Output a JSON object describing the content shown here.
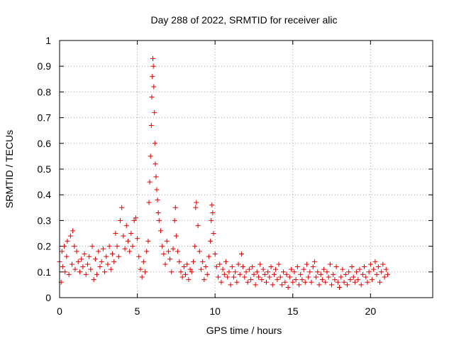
{
  "colors": {
    "series": "#e00000",
    "axis": "#000000",
    "grid": "#a0a0a0",
    "background": "#ffffff"
  },
  "chart_data": {
    "type": "scatter",
    "title": "Day 288 of 2022, SRMTID for receiver alic",
    "xlabel": "GPS time / hours",
    "ylabel": "SRMTID / TECUs",
    "xlim": [
      0,
      24
    ],
    "ylim": [
      0,
      1
    ],
    "xticks": [
      0,
      5,
      10,
      15,
      20
    ],
    "xtick_labels": [
      "0",
      "5",
      "10",
      "15",
      "20"
    ],
    "yticks": [
      0,
      0.1,
      0.2,
      0.3,
      0.4,
      0.5,
      0.6,
      0.7,
      0.8,
      0.9,
      1
    ],
    "ytick_labels": [
      "0",
      "0.1",
      "0.2",
      "0.3",
      "0.4",
      "0.5",
      "0.6",
      "0.7",
      "0.8",
      "0.9",
      "1"
    ],
    "grid": true,
    "marker": "plus",
    "series": [
      {
        "name": "SRMTID",
        "points": [
          [
            0.0,
            0.14
          ],
          [
            0.1,
            0.06
          ],
          [
            0.15,
            0.18
          ],
          [
            0.2,
            0.12
          ],
          [
            0.3,
            0.2
          ],
          [
            0.35,
            0.1
          ],
          [
            0.45,
            0.16
          ],
          [
            0.5,
            0.22
          ],
          [
            0.6,
            0.09
          ],
          [
            0.7,
            0.24
          ],
          [
            0.8,
            0.13
          ],
          [
            0.85,
            0.26
          ],
          [
            0.95,
            0.2
          ],
          [
            1.0,
            0.11
          ],
          [
            1.1,
            0.18
          ],
          [
            1.2,
            0.14
          ],
          [
            1.3,
            0.1
          ],
          [
            1.4,
            0.15
          ],
          [
            1.5,
            0.12
          ],
          [
            1.6,
            0.17
          ],
          [
            1.7,
            0.09
          ],
          [
            1.8,
            0.13
          ],
          [
            1.9,
            0.16
          ],
          [
            2.0,
            0.11
          ],
          [
            2.1,
            0.2
          ],
          [
            2.2,
            0.07
          ],
          [
            2.3,
            0.15
          ],
          [
            2.4,
            0.09
          ],
          [
            2.5,
            0.18
          ],
          [
            2.6,
            0.12
          ],
          [
            2.7,
            0.14
          ],
          [
            2.8,
            0.19
          ],
          [
            2.9,
            0.1
          ],
          [
            3.0,
            0.16
          ],
          [
            3.1,
            0.13
          ],
          [
            3.2,
            0.2
          ],
          [
            3.3,
            0.11
          ],
          [
            3.4,
            0.17
          ],
          [
            3.5,
            0.14
          ],
          [
            3.6,
            0.25
          ],
          [
            3.7,
            0.2
          ],
          [
            3.8,
            0.16
          ],
          [
            3.9,
            0.3
          ],
          [
            4.0,
            0.35
          ],
          [
            4.1,
            0.24
          ],
          [
            4.2,
            0.19
          ],
          [
            4.3,
            0.28
          ],
          [
            4.4,
            0.22
          ],
          [
            4.5,
            0.18
          ],
          [
            4.6,
            0.25
          ],
          [
            4.7,
            0.2
          ],
          [
            4.8,
            0.3
          ],
          [
            4.9,
            0.31
          ],
          [
            5.0,
            0.23
          ],
          [
            5.1,
            0.16
          ],
          [
            5.2,
            0.11
          ],
          [
            5.3,
            0.08
          ],
          [
            5.4,
            0.14
          ],
          [
            5.5,
            0.1
          ],
          [
            5.6,
            0.18
          ],
          [
            5.7,
            0.22
          ],
          [
            5.75,
            0.37
          ],
          [
            5.8,
            0.45
          ],
          [
            5.85,
            0.55
          ],
          [
            5.9,
            0.67
          ],
          [
            5.93,
            0.78
          ],
          [
            5.96,
            0.86
          ],
          [
            6.0,
            0.93
          ],
          [
            6.03,
            0.9
          ],
          [
            6.06,
            0.82
          ],
          [
            6.1,
            0.72
          ],
          [
            6.13,
            0.6
          ],
          [
            6.16,
            0.52
          ],
          [
            6.2,
            0.47
          ],
          [
            6.25,
            0.42
          ],
          [
            6.3,
            0.38
          ],
          [
            6.35,
            0.33
          ],
          [
            6.4,
            0.3
          ],
          [
            6.5,
            0.26
          ],
          [
            6.6,
            0.2
          ],
          [
            6.7,
            0.17
          ],
          [
            6.8,
            0.13
          ],
          [
            6.9,
            0.22
          ],
          [
            7.0,
            0.18
          ],
          [
            7.1,
            0.15
          ],
          [
            7.2,
            0.1
          ],
          [
            7.3,
            0.19
          ],
          [
            7.4,
            0.3
          ],
          [
            7.45,
            0.35
          ],
          [
            7.5,
            0.24
          ],
          [
            7.6,
            0.18
          ],
          [
            7.7,
            0.14
          ],
          [
            7.8,
            0.1
          ],
          [
            7.9,
            0.08
          ],
          [
            8.0,
            0.12
          ],
          [
            8.1,
            0.09
          ],
          [
            8.2,
            0.13
          ],
          [
            8.3,
            0.07
          ],
          [
            8.4,
            0.11
          ],
          [
            8.5,
            0.1
          ],
          [
            8.6,
            0.14
          ],
          [
            8.7,
            0.2
          ],
          [
            8.75,
            0.35
          ],
          [
            8.8,
            0.37
          ],
          [
            8.9,
            0.28
          ],
          [
            9.0,
            0.18
          ],
          [
            9.1,
            0.11
          ],
          [
            9.2,
            0.14
          ],
          [
            9.3,
            0.07
          ],
          [
            9.4,
            0.12
          ],
          [
            9.5,
            0.09
          ],
          [
            9.6,
            0.16
          ],
          [
            9.7,
            0.22
          ],
          [
            9.75,
            0.3
          ],
          [
            9.8,
            0.36
          ],
          [
            9.85,
            0.33
          ],
          [
            9.9,
            0.25
          ],
          [
            10.0,
            0.17
          ],
          [
            10.1,
            0.12
          ],
          [
            10.2,
            0.08
          ],
          [
            10.3,
            0.13
          ],
          [
            10.4,
            0.06
          ],
          [
            10.5,
            0.11
          ],
          [
            10.6,
            0.09
          ],
          [
            10.7,
            0.14
          ],
          [
            10.8,
            0.08
          ],
          [
            10.9,
            0.1
          ],
          [
            11.0,
            0.05
          ],
          [
            11.1,
            0.12
          ],
          [
            11.2,
            0.08
          ],
          [
            11.3,
            0.1
          ],
          [
            11.4,
            0.06
          ],
          [
            11.5,
            0.13
          ],
          [
            11.6,
            0.09
          ],
          [
            11.7,
            0.17
          ],
          [
            11.8,
            0.12
          ],
          [
            11.9,
            0.08
          ],
          [
            12.0,
            0.1
          ],
          [
            12.1,
            0.06
          ],
          [
            12.2,
            0.11
          ],
          [
            12.3,
            0.07
          ],
          [
            12.4,
            0.12
          ],
          [
            12.5,
            0.09
          ],
          [
            12.6,
            0.05
          ],
          [
            12.7,
            0.1
          ],
          [
            12.8,
            0.08
          ],
          [
            12.9,
            0.13
          ],
          [
            13.0,
            0.07
          ],
          [
            13.1,
            0.11
          ],
          [
            13.2,
            0.09
          ],
          [
            13.3,
            0.06
          ],
          [
            13.4,
            0.1
          ],
          [
            13.5,
            0.08
          ],
          [
            13.6,
            0.12
          ],
          [
            13.7,
            0.05
          ],
          [
            13.8,
            0.09
          ],
          [
            13.9,
            0.11
          ],
          [
            14.0,
            0.07
          ],
          [
            14.1,
            0.13
          ],
          [
            14.2,
            0.08
          ],
          [
            14.3,
            0.05
          ],
          [
            14.4,
            0.1
          ],
          [
            14.5,
            0.06
          ],
          [
            14.6,
            0.09
          ],
          [
            14.7,
            0.04
          ],
          [
            14.8,
            0.08
          ],
          [
            14.9,
            0.11
          ],
          [
            15.0,
            0.06
          ],
          [
            15.1,
            0.1
          ],
          [
            15.2,
            0.07
          ],
          [
            15.3,
            0.12
          ],
          [
            15.4,
            0.05
          ],
          [
            15.5,
            0.09
          ],
          [
            15.6,
            0.07
          ],
          [
            15.7,
            0.11
          ],
          [
            15.8,
            0.06
          ],
          [
            15.9,
            0.13
          ],
          [
            16.0,
            0.08
          ],
          [
            16.1,
            0.1
          ],
          [
            16.2,
            0.06
          ],
          [
            16.3,
            0.12
          ],
          [
            16.4,
            0.14
          ],
          [
            16.5,
            0.08
          ],
          [
            16.6,
            0.1
          ],
          [
            16.7,
            0.05
          ],
          [
            16.8,
            0.09
          ],
          [
            16.9,
            0.07
          ],
          [
            17.0,
            0.11
          ],
          [
            17.1,
            0.06
          ],
          [
            17.2,
            0.1
          ],
          [
            17.3,
            0.08
          ],
          [
            17.4,
            0.13
          ],
          [
            17.5,
            0.05
          ],
          [
            17.6,
            0.09
          ],
          [
            17.7,
            0.07
          ],
          [
            17.8,
            0.12
          ],
          [
            17.9,
            0.06
          ],
          [
            18.0,
            0.04
          ],
          [
            18.1,
            0.08
          ],
          [
            18.2,
            0.11
          ],
          [
            18.3,
            0.06
          ],
          [
            18.4,
            0.09
          ],
          [
            18.5,
            0.05
          ],
          [
            18.6,
            0.1
          ],
          [
            18.7,
            0.07
          ],
          [
            18.8,
            0.12
          ],
          [
            18.9,
            0.08
          ],
          [
            19.0,
            0.06
          ],
          [
            19.1,
            0.1
          ],
          [
            19.2,
            0.07
          ],
          [
            19.3,
            0.11
          ],
          [
            19.4,
            0.05
          ],
          [
            19.5,
            0.09
          ],
          [
            19.6,
            0.12
          ],
          [
            19.7,
            0.08
          ],
          [
            19.8,
            0.06
          ],
          [
            19.9,
            0.1
          ],
          [
            20.0,
            0.13
          ],
          [
            20.1,
            0.07
          ],
          [
            20.2,
            0.11
          ],
          [
            20.3,
            0.14
          ],
          [
            20.4,
            0.09
          ],
          [
            20.5,
            0.12
          ],
          [
            20.6,
            0.06
          ],
          [
            20.7,
            0.1
          ],
          [
            20.8,
            0.13
          ],
          [
            20.9,
            0.08
          ],
          [
            21.0,
            0.11
          ],
          [
            21.1,
            0.09
          ]
        ]
      }
    ]
  }
}
